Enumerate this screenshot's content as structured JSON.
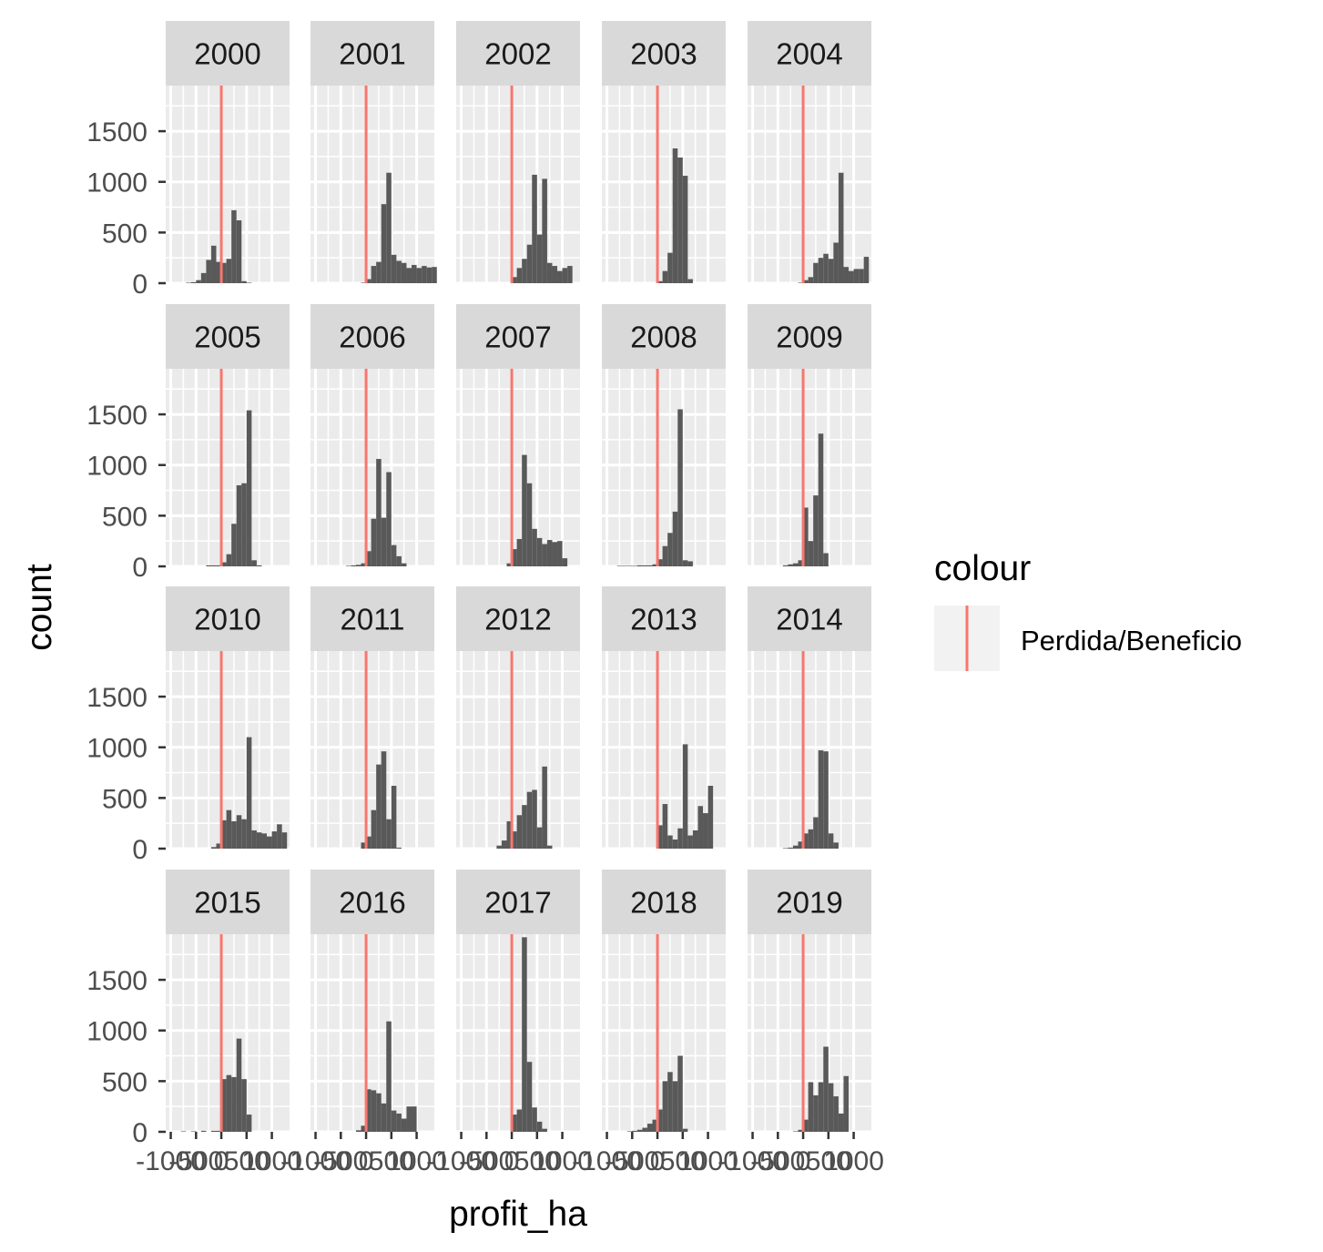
{
  "chart_data": {
    "type": "bar",
    "facet_by": "year",
    "facets": [
      {
        "label": "2000",
        "bins": [
          [
            -650,
            5
          ],
          [
            -550,
            10
          ],
          [
            -450,
            30
          ],
          [
            -350,
            100
          ],
          [
            -250,
            230
          ],
          [
            -150,
            370
          ],
          [
            -50,
            210
          ],
          [
            50,
            200
          ],
          [
            150,
            240
          ],
          [
            250,
            720
          ],
          [
            350,
            620
          ],
          [
            450,
            20
          ],
          [
            550,
            5
          ]
        ]
      },
      {
        "label": "2001",
        "bins": [
          [
            -50,
            5
          ],
          [
            50,
            40
          ],
          [
            150,
            170
          ],
          [
            250,
            210
          ],
          [
            350,
            780
          ],
          [
            450,
            1090
          ],
          [
            550,
            280
          ],
          [
            650,
            220
          ],
          [
            750,
            200
          ],
          [
            850,
            150
          ],
          [
            950,
            180
          ],
          [
            1050,
            150
          ],
          [
            1150,
            170
          ],
          [
            1250,
            155
          ],
          [
            1350,
            160
          ]
        ]
      },
      {
        "label": "2002",
        "bins": [
          [
            50,
            60
          ],
          [
            150,
            150
          ],
          [
            250,
            240
          ],
          [
            350,
            380
          ],
          [
            450,
            1070
          ],
          [
            550,
            480
          ],
          [
            650,
            1030
          ],
          [
            750,
            200
          ],
          [
            850,
            170
          ],
          [
            950,
            120
          ],
          [
            1050,
            150
          ],
          [
            1150,
            170
          ]
        ]
      },
      {
        "label": "2003",
        "bins": [
          [
            50,
            20
          ],
          [
            150,
            120
          ],
          [
            250,
            300
          ],
          [
            350,
            1330
          ],
          [
            450,
            1240
          ],
          [
            550,
            1060
          ],
          [
            650,
            40
          ]
        ]
      },
      {
        "label": "2004",
        "bins": [
          [
            -50,
            5
          ],
          [
            50,
            30
          ],
          [
            150,
            60
          ],
          [
            250,
            200
          ],
          [
            350,
            250
          ],
          [
            450,
            290
          ],
          [
            550,
            240
          ],
          [
            650,
            400
          ],
          [
            750,
            1090
          ],
          [
            850,
            160
          ],
          [
            950,
            120
          ],
          [
            1050,
            140
          ],
          [
            1150,
            140
          ],
          [
            1250,
            260
          ]
        ]
      },
      {
        "label": "2005",
        "bins": [
          [
            -250,
            10
          ],
          [
            -150,
            10
          ],
          [
            -50,
            10
          ],
          [
            50,
            40
          ],
          [
            150,
            120
          ],
          [
            250,
            420
          ],
          [
            350,
            800
          ],
          [
            450,
            820
          ],
          [
            550,
            1540
          ],
          [
            650,
            60
          ],
          [
            750,
            10
          ]
        ]
      },
      {
        "label": "2006",
        "bins": [
          [
            -350,
            5
          ],
          [
            -250,
            10
          ],
          [
            -150,
            15
          ],
          [
            -50,
            30
          ],
          [
            50,
            150
          ],
          [
            150,
            470
          ],
          [
            250,
            1060
          ],
          [
            350,
            480
          ],
          [
            450,
            930
          ],
          [
            550,
            210
          ],
          [
            650,
            100
          ],
          [
            750,
            30
          ]
        ]
      },
      {
        "label": "2007",
        "bins": [
          [
            -50,
            30
          ],
          [
            50,
            170
          ],
          [
            150,
            270
          ],
          [
            250,
            1100
          ],
          [
            350,
            820
          ],
          [
            450,
            370
          ],
          [
            550,
            280
          ],
          [
            650,
            220
          ],
          [
            750,
            260
          ],
          [
            850,
            240
          ],
          [
            950,
            250
          ],
          [
            1050,
            80
          ]
        ]
      },
      {
        "label": "2008",
        "bins": [
          [
            -750,
            5
          ],
          [
            -650,
            5
          ],
          [
            -550,
            5
          ],
          [
            -450,
            5
          ],
          [
            -350,
            10
          ],
          [
            -250,
            10
          ],
          [
            -150,
            10
          ],
          [
            -50,
            20
          ],
          [
            50,
            70
          ],
          [
            150,
            200
          ],
          [
            250,
            330
          ],
          [
            350,
            540
          ],
          [
            450,
            1550
          ],
          [
            550,
            60
          ],
          [
            650,
            50
          ]
        ]
      },
      {
        "label": "2009",
        "bins": [
          [
            -350,
            10
          ],
          [
            -250,
            20
          ],
          [
            -150,
            30
          ],
          [
            -50,
            60
          ],
          [
            50,
            580
          ],
          [
            150,
            250
          ],
          [
            250,
            700
          ],
          [
            350,
            1310
          ],
          [
            450,
            130
          ]
        ]
      },
      {
        "label": "2010",
        "bins": [
          [
            -150,
            15
          ],
          [
            -50,
            50
          ],
          [
            50,
            280
          ],
          [
            150,
            380
          ],
          [
            250,
            270
          ],
          [
            350,
            330
          ],
          [
            450,
            290
          ],
          [
            550,
            1100
          ],
          [
            650,
            180
          ],
          [
            750,
            160
          ],
          [
            850,
            150
          ],
          [
            950,
            120
          ],
          [
            1050,
            170
          ],
          [
            1150,
            240
          ],
          [
            1250,
            160
          ]
        ]
      },
      {
        "label": "2011",
        "bins": [
          [
            -50,
            60
          ],
          [
            50,
            120
          ],
          [
            150,
            380
          ],
          [
            250,
            830
          ],
          [
            350,
            960
          ],
          [
            450,
            290
          ],
          [
            550,
            620
          ],
          [
            650,
            10
          ]
        ]
      },
      {
        "label": "2012",
        "bins": [
          [
            -250,
            30
          ],
          [
            -150,
            80
          ],
          [
            -50,
            270
          ],
          [
            50,
            170
          ],
          [
            150,
            330
          ],
          [
            250,
            430
          ],
          [
            350,
            560
          ],
          [
            450,
            580
          ],
          [
            550,
            210
          ],
          [
            650,
            810
          ],
          [
            750,
            30
          ]
        ]
      },
      {
        "label": "2013",
        "bins": [
          [
            50,
            230
          ],
          [
            150,
            440
          ],
          [
            250,
            130
          ],
          [
            350,
            90
          ],
          [
            450,
            200
          ],
          [
            550,
            1030
          ],
          [
            650,
            130
          ],
          [
            750,
            180
          ],
          [
            850,
            420
          ],
          [
            950,
            350
          ],
          [
            1050,
            620
          ]
        ]
      },
      {
        "label": "2014",
        "bins": [
          [
            -350,
            5
          ],
          [
            -250,
            10
          ],
          [
            -150,
            30
          ],
          [
            -50,
            70
          ],
          [
            50,
            150
          ],
          [
            150,
            190
          ],
          [
            250,
            310
          ],
          [
            350,
            970
          ],
          [
            450,
            960
          ],
          [
            550,
            150
          ],
          [
            650,
            60
          ]
        ]
      },
      {
        "label": "2015",
        "bins": [
          [
            -750,
            5
          ],
          [
            -550,
            5
          ],
          [
            -350,
            10
          ],
          [
            -150,
            10
          ],
          [
            -50,
            10
          ],
          [
            50,
            520
          ],
          [
            150,
            560
          ],
          [
            250,
            540
          ],
          [
            350,
            920
          ],
          [
            450,
            520
          ],
          [
            550,
            170
          ]
        ]
      },
      {
        "label": "2016",
        "bins": [
          [
            -150,
            15
          ],
          [
            -50,
            60
          ],
          [
            50,
            420
          ],
          [
            150,
            410
          ],
          [
            250,
            380
          ],
          [
            350,
            280
          ],
          [
            450,
            1090
          ],
          [
            550,
            210
          ],
          [
            650,
            180
          ],
          [
            750,
            130
          ],
          [
            850,
            250
          ],
          [
            950,
            250
          ]
        ]
      },
      {
        "label": "2017",
        "bins": [
          [
            50,
            170
          ],
          [
            150,
            220
          ],
          [
            250,
            1920
          ],
          [
            350,
            690
          ],
          [
            450,
            240
          ],
          [
            550,
            100
          ],
          [
            650,
            30
          ]
        ]
      },
      {
        "label": "2018",
        "bins": [
          [
            -550,
            5
          ],
          [
            -450,
            10
          ],
          [
            -350,
            20
          ],
          [
            -250,
            40
          ],
          [
            -150,
            80
          ],
          [
            -50,
            120
          ],
          [
            50,
            220
          ],
          [
            150,
            500
          ],
          [
            250,
            590
          ],
          [
            350,
            500
          ],
          [
            450,
            750
          ],
          [
            550,
            30
          ]
        ]
      },
      {
        "label": "2019",
        "bins": [
          [
            -150,
            5
          ],
          [
            -50,
            20
          ],
          [
            50,
            120
          ],
          [
            150,
            490
          ],
          [
            250,
            360
          ],
          [
            350,
            490
          ],
          [
            450,
            840
          ],
          [
            550,
            480
          ],
          [
            650,
            350
          ],
          [
            750,
            180
          ],
          [
            850,
            550
          ]
        ]
      }
    ],
    "bin_width": 100,
    "bar_color": "#595959",
    "vline": {
      "x": 0,
      "color": "#F8766D",
      "legend_label": "Perdida/Beneficio"
    },
    "xlim": [
      -1100,
      1350
    ],
    "ylim": [
      0,
      1950
    ],
    "x_ticks": [
      -1000,
      -500,
      0,
      500,
      1000
    ],
    "x_tick_labels": [
      "-1000",
      "-500",
      "0",
      "500",
      "1000"
    ],
    "y_ticks": [
      0,
      500,
      1000,
      1500
    ],
    "y_tick_labels": [
      "0",
      "500",
      "1000",
      "1500"
    ],
    "xlabel": "profit_ha",
    "ylabel": "count",
    "legend_title": "colour",
    "legend_position": "right",
    "panel_background": "#EBEBEB",
    "strip_background": "#D9D9D9",
    "grid": true
  }
}
